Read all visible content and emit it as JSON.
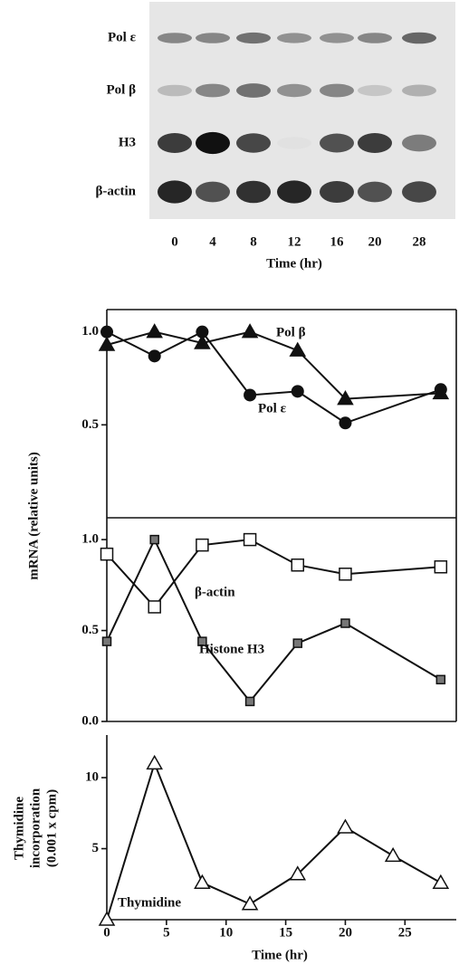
{
  "blot": {
    "rows": [
      "Pol ε",
      "Pol β",
      "H3",
      "β-actin"
    ],
    "lanes": [
      0,
      4,
      8,
      12,
      16,
      20,
      28
    ],
    "xlabel": "Time (hr)"
  },
  "chart_data": [
    {
      "type": "line",
      "ylabel": "mRNA (relative units)",
      "xlim": [
        0,
        29
      ],
      "ylim": [
        0,
        1.12
      ],
      "yticks": [
        0.5,
        {
          "value": 1.0,
          "label": "1.0"
        }
      ],
      "series": [
        {
          "name": "Pol ε",
          "color": "#111111",
          "marker": "circle-filled",
          "x": [
            0,
            4,
            8,
            12,
            16,
            20,
            28
          ],
          "values": [
            1.0,
            0.87,
            1.0,
            0.66,
            0.68,
            0.51,
            0.69
          ]
        },
        {
          "name": "Pol β",
          "color": "#111111",
          "marker": "triangle-filled",
          "x": [
            0,
            4,
            8,
            12,
            16,
            20,
            28
          ],
          "values": [
            0.93,
            1.0,
            0.94,
            1.0,
            0.9,
            0.64,
            0.67
          ]
        }
      ]
    },
    {
      "type": "line",
      "xlim": [
        0,
        29
      ],
      "ylim": [
        0,
        1.12
      ],
      "yticks": [
        {
          "value": 0,
          "label": "0.0"
        },
        0.5,
        {
          "value": 1.0,
          "label": "1.0"
        }
      ],
      "series": [
        {
          "name": "β-actin",
          "color": "#111111",
          "marker": "square-open",
          "x": [
            0,
            4,
            8,
            12,
            16,
            20,
            28
          ],
          "values": [
            0.92,
            0.63,
            0.97,
            1.0,
            0.86,
            0.81,
            0.85
          ]
        },
        {
          "name": "Histone H3",
          "color": "#111111",
          "marker": "square-small",
          "x": [
            0,
            4,
            8,
            12,
            16,
            20,
            28
          ],
          "values": [
            0.44,
            1.0,
            0.44,
            0.11,
            0.43,
            0.54,
            0.23
          ]
        }
      ]
    },
    {
      "type": "line",
      "ylabel_lines": [
        "Thymidine",
        "incorporation",
        "(0.001 x cpm)"
      ],
      "xlabel": "Time (hr)",
      "xlim": [
        0,
        29
      ],
      "xticks": [
        0,
        5,
        10,
        15,
        20,
        25
      ],
      "ylim": [
        0,
        13
      ],
      "yticks": [
        5,
        10
      ],
      "series": [
        {
          "name": "Thymidine",
          "color": "#111111",
          "marker": "triangle-open",
          "x": [
            0,
            4,
            8,
            12,
            16,
            20,
            24,
            28
          ],
          "values": [
            0,
            11,
            2.6,
            1.1,
            3.2,
            6.5,
            4.5,
            2.6
          ]
        }
      ]
    }
  ]
}
